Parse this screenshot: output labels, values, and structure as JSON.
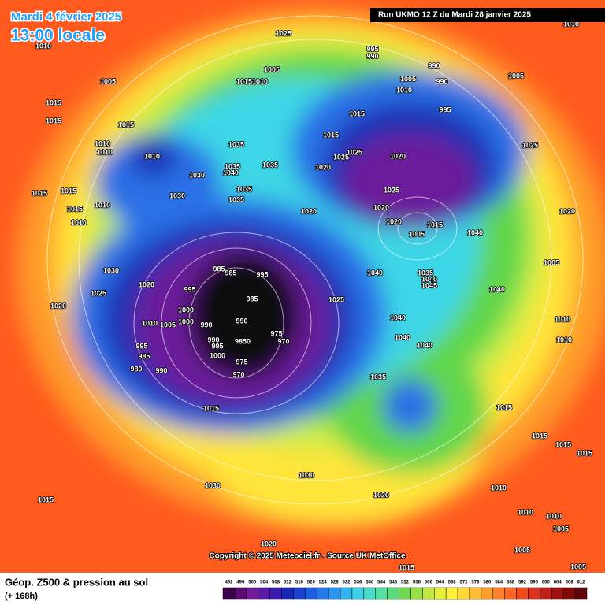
{
  "header": {
    "date": "Mardi 4 février 2025",
    "time": "13:00 locale",
    "run": "Run UKMO 12 Z du Mardi 28 janvier 2025"
  },
  "copyright": "Copyright © 2025 Meteociel.fr - Source UK MetOffice",
  "legend": {
    "title": "Géop. Z500 & pression au sol",
    "subtitle": "(+ 168h)",
    "scale": [
      492,
      496,
      500,
      504,
      508,
      512,
      516,
      520,
      524,
      528,
      532,
      536,
      540,
      544,
      548,
      552,
      556,
      560,
      564,
      568,
      572,
      576,
      580,
      584,
      588,
      592,
      596,
      600,
      604,
      608,
      612
    ]
  },
  "pressure_labels": [
    "1025",
    "1010",
    "995",
    "990",
    "1005",
    "990",
    "1005",
    "10151010",
    "1005",
    "990",
    "1010",
    "1005",
    "1015",
    "995",
    "1015",
    "1015",
    "1015",
    "1015",
    "1010",
    "1010",
    "1025",
    "1035",
    "1010",
    "1020",
    "1025",
    "1025",
    "1035",
    "1040",
    "1035",
    "1020",
    "1030",
    "1015",
    "1015",
    "1030",
    "1035",
    "1025",
    "1015",
    "1010",
    "1035",
    "1020",
    "1020",
    "1020",
    "1010",
    "1020",
    "1015",
    "1040",
    "1005",
    "985",
    "985",
    "995",
    "1005",
    "1030",
    "1040",
    "1035",
    "1040",
    "1045",
    "1020",
    "995",
    "1040",
    "985",
    "1025",
    "1025",
    "1020",
    "1000",
    "1040",
    "990",
    "1010",
    "1000",
    "1010",
    "1005",
    "990",
    "975",
    "970",
    "990",
    "9850",
    "1040",
    "1040",
    "1010",
    "995",
    "995",
    "985",
    "1000",
    "975",
    "980",
    "990",
    "970",
    "1035",
    "1015",
    "1015",
    "1015",
    "1015",
    "1015",
    "1030",
    "1030",
    "1010",
    "1020",
    "1015",
    "1010",
    "1010",
    "1005",
    "1005",
    "1020",
    "1015",
    "1010",
    "1005"
  ]
}
